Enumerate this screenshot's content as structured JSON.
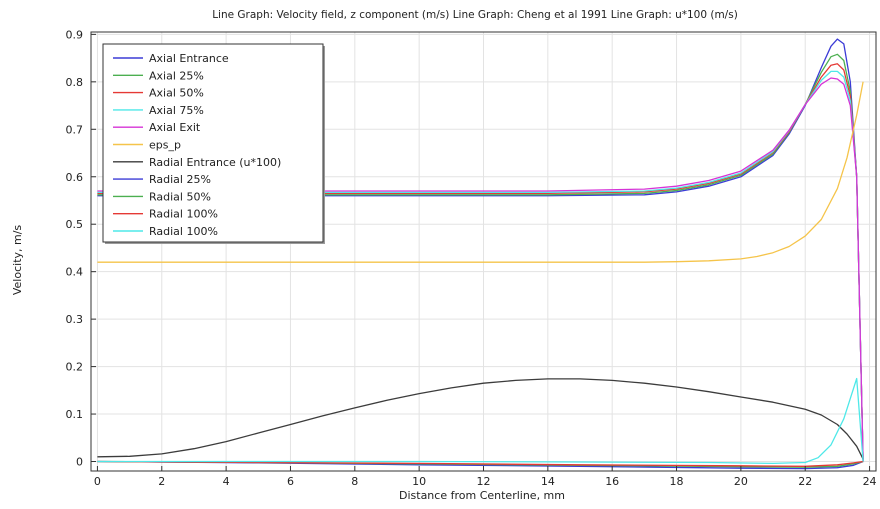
{
  "chart_data": {
    "type": "line",
    "title": "Line Graph: Velocity field, z component (m/s)  Line Graph: Cheng et al 1991  Line Graph: u*100 (m/s)",
    "xlabel": "Distance from Centerline, mm",
    "ylabel": "Velocity, m/s",
    "xlim": [
      -0.2,
      24.2
    ],
    "ylim": [
      -0.02,
      0.905
    ],
    "xticks": [
      0,
      2,
      4,
      6,
      8,
      10,
      12,
      14,
      16,
      18,
      20,
      22,
      24
    ],
    "yticks": [
      0,
      0.1,
      0.2,
      0.3,
      0.4,
      0.5,
      0.6,
      0.7,
      0.8,
      0.9
    ],
    "grid": true,
    "legend_position": "top-left",
    "series": [
      {
        "name": "Axial Entrance",
        "color": "#3b3bd6",
        "x": [
          0,
          5,
          10,
          14,
          17,
          18,
          19,
          20,
          21,
          21.5,
          22,
          22.5,
          22.8,
          23,
          23.2,
          23.4,
          23.6,
          23.8
        ],
        "y": [
          0.56,
          0.56,
          0.56,
          0.56,
          0.562,
          0.568,
          0.58,
          0.6,
          0.645,
          0.69,
          0.75,
          0.83,
          0.875,
          0.89,
          0.88,
          0.8,
          0.6,
          0.0
        ]
      },
      {
        "name": "Axial 25%",
        "color": "#4caf50",
        "x": [
          0,
          5,
          10,
          14,
          17,
          18,
          19,
          20,
          21,
          21.5,
          22,
          22.5,
          22.8,
          23,
          23.2,
          23.4,
          23.6,
          23.8
        ],
        "y": [
          0.562,
          0.562,
          0.562,
          0.562,
          0.565,
          0.571,
          0.583,
          0.603,
          0.648,
          0.693,
          0.752,
          0.82,
          0.853,
          0.858,
          0.845,
          0.78,
          0.6,
          0.0
        ]
      },
      {
        "name": "Axial 50%",
        "color": "#e53935",
        "x": [
          0,
          5,
          10,
          14,
          17,
          18,
          19,
          20,
          21,
          21.5,
          22,
          22.5,
          22.8,
          23,
          23.2,
          23.4,
          23.6,
          23.8
        ],
        "y": [
          0.565,
          0.565,
          0.565,
          0.565,
          0.568,
          0.574,
          0.586,
          0.606,
          0.651,
          0.695,
          0.752,
          0.81,
          0.835,
          0.838,
          0.825,
          0.77,
          0.6,
          0.0
        ]
      },
      {
        "name": "Axial 75%",
        "color": "#4ee8e8",
        "x": [
          0,
          5,
          10,
          14,
          17,
          18,
          19,
          20,
          21,
          21.5,
          22,
          22.5,
          22.8,
          23,
          23.2,
          23.4,
          23.6,
          23.8
        ],
        "y": [
          0.567,
          0.567,
          0.567,
          0.567,
          0.57,
          0.576,
          0.588,
          0.608,
          0.653,
          0.697,
          0.752,
          0.803,
          0.822,
          0.822,
          0.81,
          0.76,
          0.6,
          0.0
        ]
      },
      {
        "name": "Axial Exit",
        "color": "#d633d6",
        "x": [
          0,
          5,
          10,
          14,
          17,
          18,
          19,
          20,
          21,
          21.5,
          22,
          22.5,
          22.8,
          23,
          23.2,
          23.4,
          23.6,
          23.8
        ],
        "y": [
          0.57,
          0.57,
          0.57,
          0.57,
          0.574,
          0.58,
          0.592,
          0.612,
          0.656,
          0.698,
          0.752,
          0.795,
          0.808,
          0.806,
          0.795,
          0.75,
          0.6,
          0.0
        ]
      },
      {
        "name": "eps_p",
        "color": "#f5c44a",
        "x": [
          0,
          5,
          10,
          15,
          17,
          18,
          19,
          20,
          20.5,
          21,
          21.5,
          22,
          22.5,
          23,
          23.3,
          23.6,
          23.8
        ],
        "y": [
          0.42,
          0.42,
          0.42,
          0.42,
          0.42,
          0.421,
          0.423,
          0.427,
          0.432,
          0.44,
          0.453,
          0.475,
          0.51,
          0.575,
          0.64,
          0.73,
          0.8
        ]
      },
      {
        "name": "Radial Entrance (u*100)",
        "color": "#3c3c3c",
        "x": [
          0,
          1,
          2,
          3,
          4,
          5,
          6,
          7,
          8,
          9,
          10,
          11,
          12,
          13,
          14,
          15,
          16,
          17,
          18,
          19,
          20,
          21,
          22,
          22.5,
          23,
          23.3,
          23.6,
          23.8
        ],
        "y": [
          0.01,
          0.011,
          0.016,
          0.027,
          0.042,
          0.06,
          0.078,
          0.096,
          0.113,
          0.129,
          0.143,
          0.155,
          0.165,
          0.171,
          0.174,
          0.174,
          0.171,
          0.165,
          0.157,
          0.147,
          0.136,
          0.125,
          0.11,
          0.098,
          0.078,
          0.058,
          0.032,
          0.005
        ]
      },
      {
        "name": "Radial 25%",
        "color": "#3b3bd6",
        "x": [
          0,
          5,
          10,
          15,
          20,
          22,
          23,
          23.5,
          23.8
        ],
        "y": [
          0.0,
          -0.003,
          -0.007,
          -0.01,
          -0.014,
          -0.015,
          -0.013,
          -0.008,
          0.0
        ]
      },
      {
        "name": "Radial 50%",
        "color": "#4caf50",
        "x": [
          0,
          5,
          10,
          15,
          20,
          22,
          23,
          23.5,
          23.8
        ],
        "y": [
          0.0,
          -0.002,
          -0.005,
          -0.008,
          -0.011,
          -0.012,
          -0.01,
          -0.005,
          0.0
        ]
      },
      {
        "name": "Radial 100%",
        "color": "#e53935",
        "x": [
          0,
          5,
          10,
          15,
          20,
          22,
          23,
          23.5,
          23.8
        ],
        "y": [
          0.0,
          -0.002,
          -0.004,
          -0.007,
          -0.009,
          -0.01,
          -0.007,
          -0.003,
          0.0
        ]
      },
      {
        "name": "Radial 100%",
        "color": "#4ee8e8",
        "x": [
          0,
          5,
          10,
          15,
          19,
          21,
          22,
          22.4,
          22.8,
          23.2,
          23.6,
          23.8
        ],
        "y": [
          0.0,
          0.0,
          0.0,
          -0.001,
          -0.002,
          -0.004,
          -0.002,
          0.008,
          0.035,
          0.09,
          0.175,
          0.0
        ]
      }
    ]
  }
}
